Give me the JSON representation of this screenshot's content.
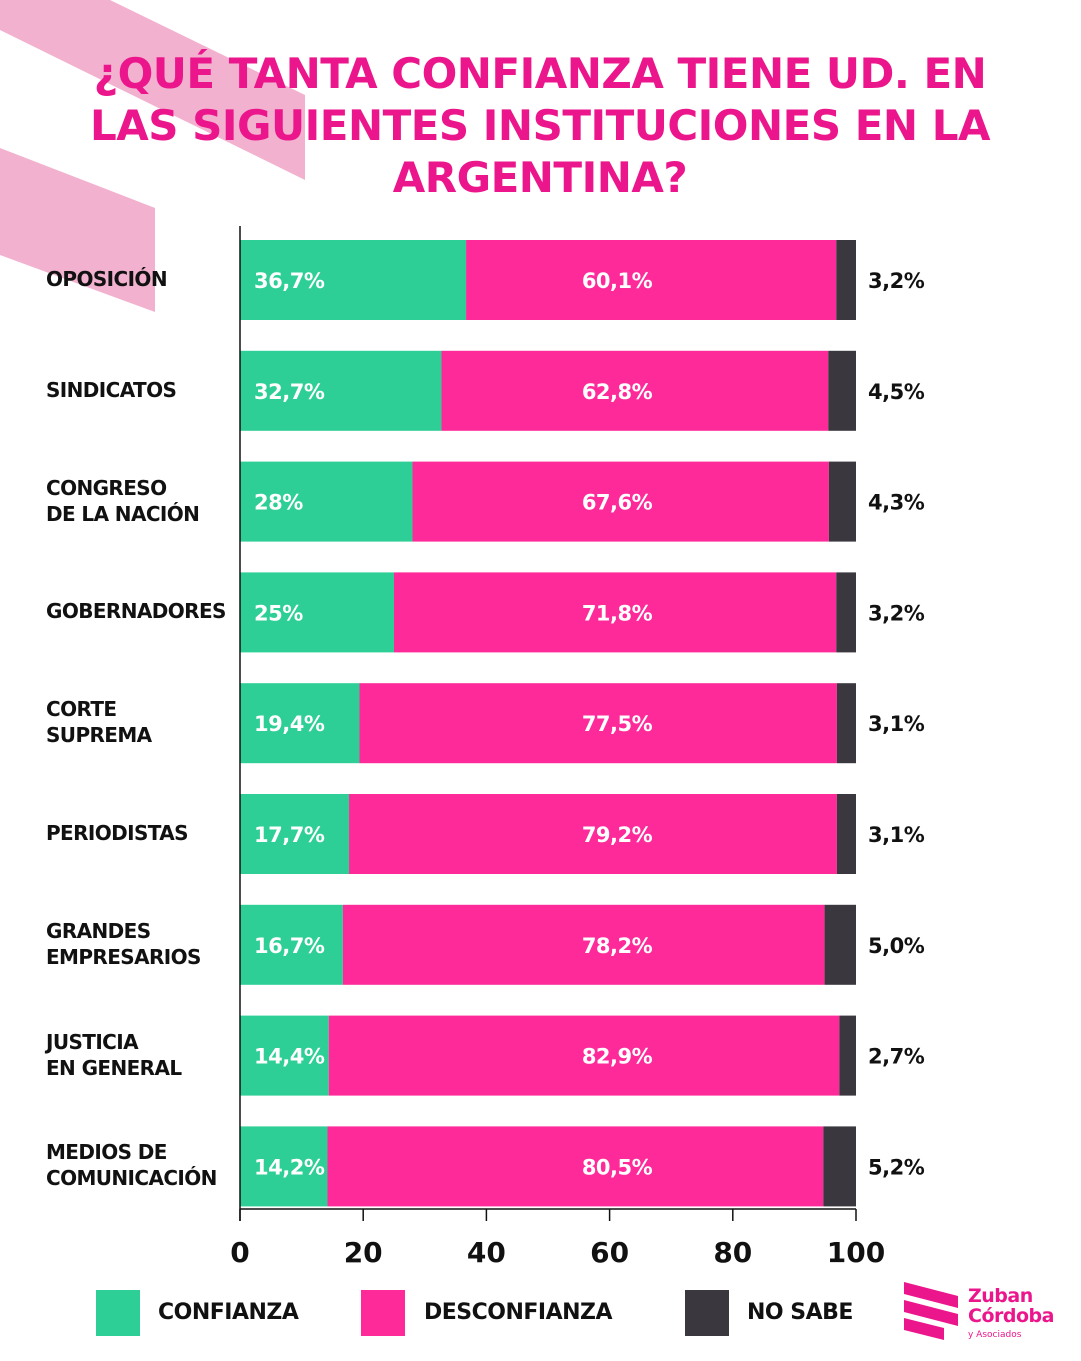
{
  "colors": {
    "confianza": "#2ecf96",
    "desconfianza": "#ff2a9a",
    "no_sabe": "#3a373f",
    "title": "#ec168c",
    "deco": "#f2b1cf"
  },
  "title": "¿QUÉ TANTA CONFIANZA TIENE UD. EN LAS SIGUIENTES INSTITUCIONES EN LA ARGENTINA?",
  "legend": {
    "confianza": "CONFIANZA",
    "desconfianza": "DESCONFIANZA",
    "no_sabe": "NO SABE"
  },
  "logo": {
    "line1": "Zuban",
    "line2": "Córdoba",
    "line3": "y Asociados"
  },
  "chart_data": {
    "type": "bar",
    "orientation": "horizontal",
    "stacked": true,
    "title": "¿QUÉ TANTA CONFIANZA TIENE UD. EN LAS SIGUIENTES INSTITUCIONES EN LA ARGENTINA?",
    "categories": [
      "OPOSICIÓN",
      "SINDICATOS",
      "CONGRESO\nDE LA NACIÓN",
      "GOBERNADORES",
      "CORTE\nSUPREMA",
      "PERIODISTAS",
      "GRANDES\nEMPRESARIOS",
      "JUSTICIA\nEN GENERAL",
      "MEDIOS DE\nCOMUNICACIÓN"
    ],
    "series": [
      {
        "name": "CONFIANZA",
        "values": [
          36.7,
          32.7,
          28,
          25,
          19.4,
          17.7,
          16.7,
          14.4,
          14.2
        ],
        "labels": [
          "36,7%",
          "32,7%",
          "28%",
          "25%",
          "19,4%",
          "17,7%",
          "16,7%",
          "14,4%",
          "14,2%"
        ]
      },
      {
        "name": "DESCONFIANZA",
        "values": [
          60.1,
          62.8,
          67.6,
          71.8,
          77.5,
          79.2,
          78.2,
          82.9,
          80.5
        ],
        "labels": [
          "60,1%",
          "62,8%",
          "67,6%",
          "71,8%",
          "77,5%",
          "79,2%",
          "78,2%",
          "82,9%",
          "80,5%"
        ]
      },
      {
        "name": "NO SABE",
        "values": [
          3.2,
          4.5,
          4.3,
          3.2,
          3.1,
          3.1,
          5.0,
          2.7,
          5.2
        ],
        "labels": [
          "3,2%",
          "4,5%",
          "4,3%",
          "3,2%",
          "3,1%",
          "3,1%",
          "5,0%",
          "2,7%",
          "5,2%"
        ]
      }
    ],
    "xlim": [
      0,
      100
    ],
    "xticks": [
      0,
      20,
      40,
      60,
      80,
      100
    ],
    "grid": false,
    "legend_position": "bottom"
  }
}
